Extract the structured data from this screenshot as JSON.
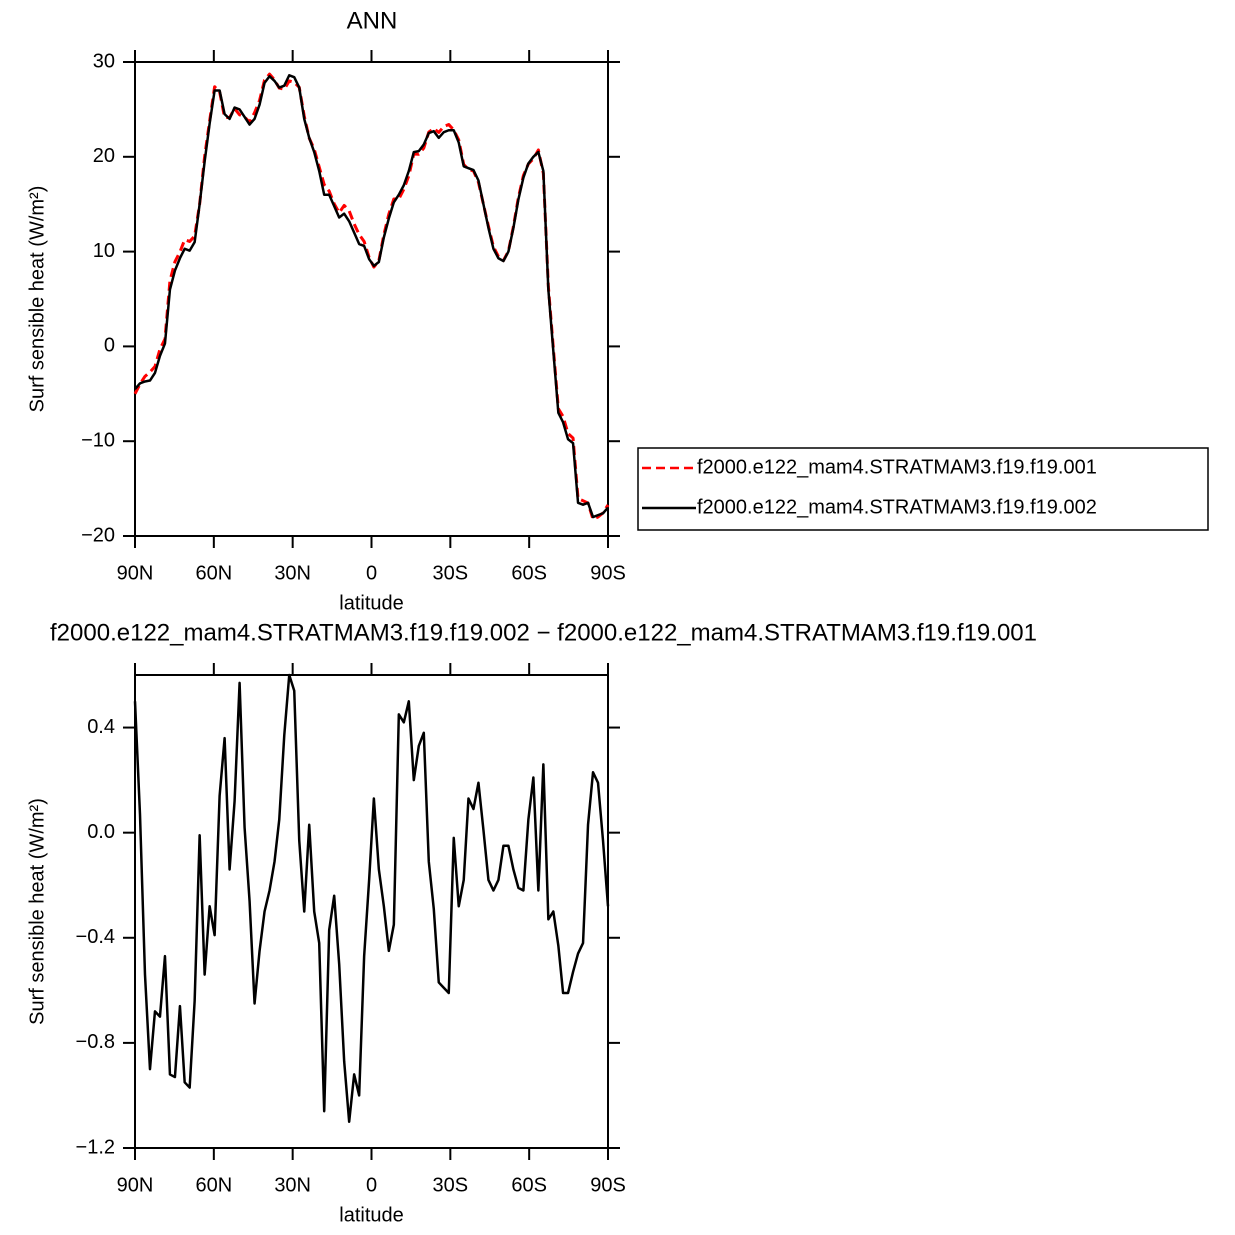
{
  "chart_data": [
    {
      "type": "line",
      "title": "ANN",
      "xlabel": "latitude",
      "ylabel": "Surf  sensible  heat  (W/m²)",
      "x": [
        90.0,
        88.1,
        86.2,
        84.3,
        82.4,
        80.5,
        78.6,
        76.7,
        74.8,
        72.9,
        71.1,
        69.2,
        67.3,
        65.4,
        63.5,
        61.6,
        59.7,
        57.8,
        55.9,
        54.0,
        52.1,
        50.2,
        48.3,
        46.4,
        44.5,
        42.6,
        40.7,
        38.8,
        36.9,
        35.1,
        33.2,
        31.3,
        29.4,
        27.5,
        25.6,
        23.7,
        21.8,
        19.9,
        18.0,
        16.1,
        14.2,
        12.3,
        10.4,
        8.5,
        6.6,
        4.7,
        2.8,
        0.9,
        -0.9,
        -2.8,
        -4.7,
        -6.6,
        -8.5,
        -10.4,
        -12.3,
        -14.2,
        -16.1,
        -18.0,
        -19.9,
        -21.8,
        -23.7,
        -25.6,
        -27.5,
        -29.4,
        -31.3,
        -33.2,
        -35.1,
        -36.9,
        -38.8,
        -40.7,
        -42.6,
        -44.5,
        -46.4,
        -48.3,
        -50.2,
        -52.1,
        -54.0,
        -55.9,
        -57.8,
        -59.7,
        -61.6,
        -63.5,
        -65.4,
        -67.3,
        -69.2,
        -71.1,
        -72.9,
        -74.8,
        -76.7,
        -78.6,
        -80.5,
        -82.4,
        -84.3,
        -86.2,
        -88.1,
        -90.0
      ],
      "xlim": [
        90,
        -90
      ],
      "xticks": [
        {
          "value": 90,
          "label": "90N"
        },
        {
          "value": 60,
          "label": "60N"
        },
        {
          "value": 30,
          "label": "30N"
        },
        0,
        {
          "value": -30,
          "label": "30S"
        },
        {
          "value": -60,
          "label": "60S"
        },
        {
          "value": -90,
          "label": "90S"
        }
      ],
      "ylim": [
        -20,
        30
      ],
      "yticks": [
        {
          "value": -20,
          "label": "−20"
        },
        {
          "value": -10,
          "label": "−10"
        },
        0,
        10,
        20,
        30
      ],
      "legend": "right",
      "series": [
        {
          "name": "f2000.e122_mam4.STRATMAM3.f19.f19.001",
          "color": "#ff0000",
          "line_style": "dashed",
          "values": [
            -5.0,
            -3.97,
            -3.16,
            -2.7,
            -2.12,
            -0.3,
            0.77,
            6.92,
            8.93,
            9.96,
            11.25,
            11.07,
            11.64,
            15.01,
            20.04,
            23.78,
            27.39,
            26.86,
            24.14,
            24.14,
            25.08,
            24.43,
            24.18,
            23.66,
            24.65,
            25.95,
            28.1,
            28.72,
            28.11,
            27.25,
            27.13,
            28.0,
            27.86,
            27.33,
            24.3,
            21.97,
            20.8,
            18.92,
            17.06,
            16.37,
            15.04,
            14.1,
            14.87,
            14.3,
            12.92,
            11.8,
            11.07,
            9.38,
            8.37,
            9.04,
            11.78,
            13.95,
            15.55,
            15.55,
            16.58,
            18.0,
            20.3,
            20.27,
            20.92,
            22.61,
            22.99,
            22.57,
            23.19,
            23.41,
            22.82,
            21.78,
            19.18,
            18.67,
            18.51,
            17.31,
            14.99,
            12.68,
            10.52,
            9.48,
            9.05,
            10.05,
            12.64,
            15.71,
            18.02,
            19.25,
            19.79,
            20.72,
            18.24,
            6.33,
            -0.2,
            -6.57,
            -7.39,
            -9.19,
            -9.67,
            -16.04,
            -16.28,
            -16.53,
            -18.23,
            -17.99,
            -17.57,
            -16.72
          ]
        },
        {
          "name": "f2000.e122_mam4.STRATMAM3.f19.f19.002",
          "color": "#000000",
          "line_style": "solid",
          "values": [
            -4.5,
            -3.9,
            -3.7,
            -3.6,
            -2.8,
            -1.0,
            0.3,
            6,
            8,
            9.3,
            10.3,
            10.1,
            11.0,
            15,
            19.5,
            23.5,
            27.0,
            27.0,
            24.5,
            24.0,
            25.2,
            25.0,
            24.2,
            23.4,
            24.0,
            25.5,
            27.8,
            28.5,
            28.0,
            27.3,
            27.5,
            28.6,
            28.4,
            27.3,
            24.0,
            22.0,
            20.5,
            18.5,
            16.0,
            16.0,
            14.8,
            13.6,
            14.0,
            13.2,
            12.0,
            10.8,
            10.6,
            9.2,
            8.5,
            8.9,
            11.5,
            13.5,
            15.2,
            16.0,
            17.0,
            18.5,
            20.5,
            20.6,
            21.3,
            22.5,
            22.7,
            22.0,
            22.6,
            22.8,
            22.8,
            21.5,
            19.0,
            18.8,
            18.6,
            17.5,
            15.0,
            12.5,
            10.3,
            9.3,
            9.0,
            10.0,
            12.5,
            15.5,
            17.8,
            19.3,
            20.0,
            20.5,
            18.5,
            6,
            -0.5,
            -7.0,
            -8.0,
            -9.8,
            -10.2,
            -16.5,
            -16.7,
            -16.5,
            -18.0,
            -17.8,
            -17.6,
            -17.0
          ]
        }
      ]
    },
    {
      "type": "line",
      "title": "f2000.e122_mam4.STRATMAM3.f19.f19.002 − f2000.e122_mam4.STRATMAM3.f19.f19.001",
      "xlabel": "latitude",
      "ylabel": "Surf  sensible  heat  (W/m²)",
      "x": [
        90.0,
        88.1,
        86.2,
        84.3,
        82.4,
        80.5,
        78.6,
        76.7,
        74.8,
        72.9,
        71.1,
        69.2,
        67.3,
        65.4,
        63.5,
        61.6,
        59.7,
        57.8,
        55.9,
        54.0,
        52.1,
        50.2,
        48.3,
        46.4,
        44.5,
        42.6,
        40.7,
        38.8,
        36.9,
        35.1,
        33.2,
        31.3,
        29.4,
        27.5,
        25.6,
        23.7,
        21.8,
        19.9,
        18.0,
        16.1,
        14.2,
        12.3,
        10.4,
        8.5,
        6.6,
        4.7,
        2.8,
        0.9,
        -0.9,
        -2.8,
        -4.7,
        -6.6,
        -8.5,
        -10.4,
        -12.3,
        -14.2,
        -16.1,
        -18.0,
        -19.9,
        -21.8,
        -23.7,
        -25.6,
        -27.5,
        -29.4,
        -31.3,
        -33.2,
        -35.1,
        -36.9,
        -38.8,
        -40.7,
        -42.6,
        -44.5,
        -46.4,
        -48.3,
        -50.2,
        -52.1,
        -54.0,
        -55.9,
        -57.8,
        -59.7,
        -61.6,
        -63.5,
        -65.4,
        -67.3,
        -69.2,
        -71.1,
        -72.9,
        -74.8,
        -76.7,
        -78.6,
        -80.5,
        -82.4,
        -84.3,
        -86.2,
        -88.1,
        -90.0
      ],
      "xlim": [
        90,
        -90
      ],
      "xticks": [
        {
          "value": 90,
          "label": "90N"
        },
        {
          "value": 60,
          "label": "60N"
        },
        {
          "value": 30,
          "label": "30N"
        },
        0,
        {
          "value": -30,
          "label": "30S"
        },
        {
          "value": -60,
          "label": "60S"
        },
        {
          "value": -90,
          "label": "90S"
        }
      ],
      "ylim": [
        -1.2,
        0.6
      ],
      "yticks": [
        {
          "value": -1.2,
          "label": "−1.2"
        },
        {
          "value": -0.8,
          "label": "−0.8"
        },
        {
          "value": -0.4,
          "label": "−0.4"
        },
        {
          "value": 0,
          "label": "0.0"
        },
        0.4
      ],
      "color": "#000000",
      "values": [
        0.5,
        0.07,
        -0.54,
        -0.9,
        -0.68,
        -0.7,
        -0.47,
        -0.92,
        -0.93,
        -0.66,
        -0.95,
        -0.97,
        -0.64,
        -0.01,
        -0.54,
        -0.28,
        -0.39,
        0.14,
        0.36,
        -0.14,
        0.12,
        0.57,
        0.02,
        -0.26,
        -0.65,
        -0.45,
        -0.3,
        -0.22,
        -0.11,
        0.05,
        0.37,
        0.6,
        0.54,
        -0.03,
        -0.3,
        0.03,
        -0.3,
        -0.42,
        -1.06,
        -0.37,
        -0.24,
        -0.5,
        -0.87,
        -1.1,
        -0.92,
        -1.0,
        -0.47,
        -0.18,
        0.13,
        -0.14,
        -0.28,
        -0.45,
        -0.35,
        0.45,
        0.42,
        0.5,
        0.2,
        0.33,
        0.38,
        -0.11,
        -0.29,
        -0.57,
        -0.59,
        -0.61,
        -0.02,
        -0.28,
        -0.18,
        0.13,
        0.09,
        0.19,
        0.01,
        -0.18,
        -0.22,
        -0.18,
        -0.05,
        -0.05,
        -0.14,
        -0.21,
        -0.22,
        0.05,
        0.21,
        -0.22,
        0.26,
        -0.33,
        -0.3,
        -0.43,
        -0.61,
        -0.61,
        -0.53,
        -0.46,
        -0.42,
        0.03,
        0.23,
        0.19,
        -0.03,
        -0.28
      ]
    }
  ]
}
